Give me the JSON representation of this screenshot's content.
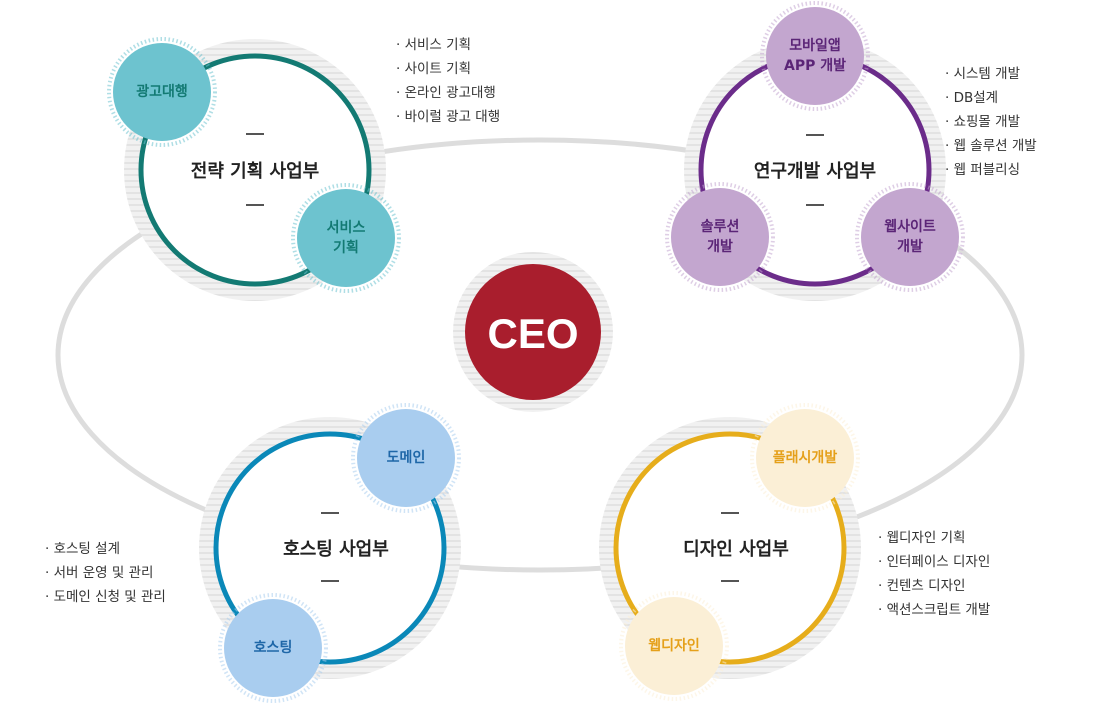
{
  "ceo": "CEO",
  "divisions": {
    "strategy": {
      "title": "전략 기획 사업부",
      "sub": [
        "광고대행",
        "서비스\n기획"
      ],
      "items": [
        "서비스 기획",
        "사이트 기획",
        "온라인 광고대행",
        "바이럴 광고 대행"
      ],
      "ring_color": "#137a73",
      "sub_color": "#6dc3cf",
      "sub_text_color": "#137a73"
    },
    "rnd": {
      "title": "연구개발 사업부",
      "sub": [
        "모바일앱\nAPP 개발",
        "솔루션\n개발",
        "웹사이트\n개발"
      ],
      "items": [
        "시스템 개발",
        "DB설계",
        "쇼핑몰 개발",
        "웹 솔루션 개발",
        "웹 퍼블리싱"
      ],
      "ring_color": "#6b2c8a",
      "sub_color": "#c3a6cf",
      "sub_text_color": "#5b2577"
    },
    "hosting": {
      "title": "호스팅 사업부",
      "sub": [
        "도메인",
        "호스팅"
      ],
      "items": [
        "호스팅 설계",
        "서버 운영 및 관리",
        "도메인 신청 및 관리"
      ],
      "ring_color": "#0a88b8",
      "sub_color": "#a9cdef",
      "sub_text_color": "#1f67a8"
    },
    "design": {
      "title": "디자인 사업부",
      "sub": [
        "플래시개발",
        "웹디자인"
      ],
      "items": [
        "웹디자인 기획",
        "인터페이스 디자인",
        "컨텐츠 디자인",
        "액션스크립트 개발"
      ],
      "ring_color": "#e6ad1b",
      "sub_color": "#fbefd6",
      "sub_text_color": "#e5a01a"
    }
  },
  "colors": {
    "ceo": "#a91e2d",
    "connector": "#dddddd",
    "hatch_light": "#f1f1f1",
    "hatch_dark": "#e3e3e3"
  }
}
